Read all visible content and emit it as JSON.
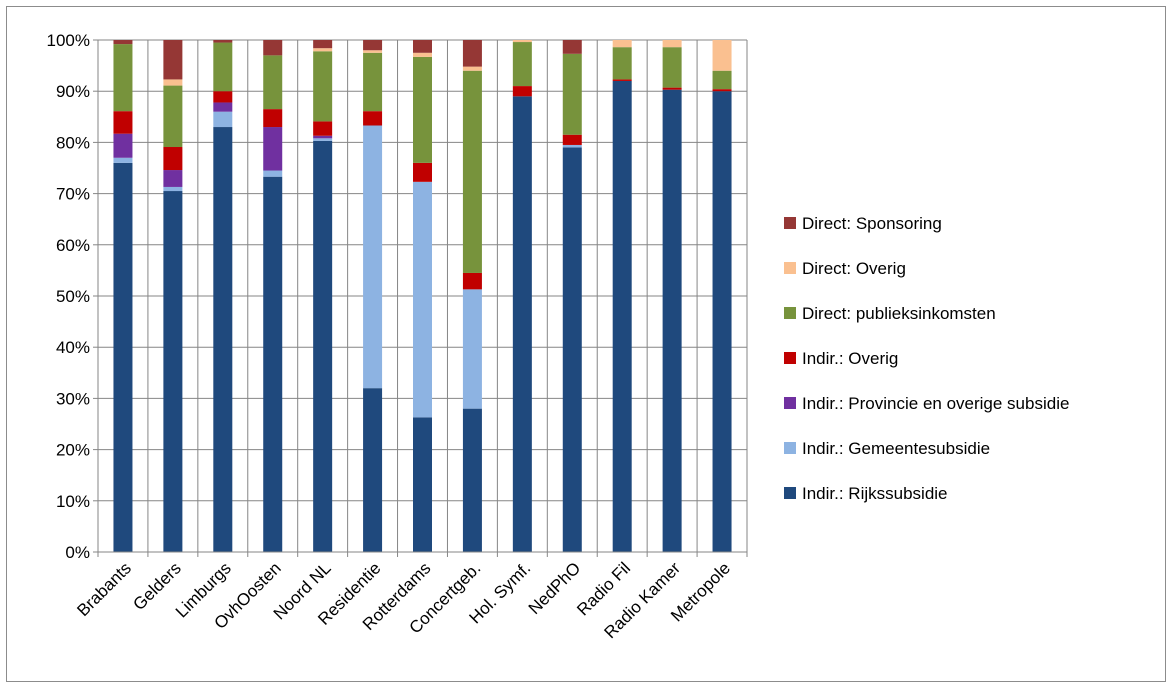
{
  "chart_data": {
    "type": "bar",
    "stacked": true,
    "normalized": true,
    "title": "",
    "xlabel": "",
    "ylabel": "",
    "ylim": [
      0,
      100
    ],
    "ytick_step": 10,
    "yticks": [
      "0%",
      "10%",
      "20%",
      "30%",
      "40%",
      "50%",
      "60%",
      "70%",
      "80%",
      "90%",
      "100%"
    ],
    "grid": true,
    "legend_position": "right",
    "categories": [
      "Brabants",
      "Gelders",
      "Limburgs",
      "OvhOosten",
      "Noord NL",
      "Residentie",
      "Rotterdams",
      "Concertgeb.",
      "Hol. Symf.",
      "NedPhO",
      "Radio Fil",
      "Radio Kamer",
      "Metropole"
    ],
    "series": [
      {
        "name": "Indir.: Rijkssubsidie",
        "color": "#1f497d",
        "values": [
          76,
          70.5,
          83,
          73.3,
          80.3,
          32,
          26.3,
          28,
          89,
          79,
          92,
          90.3,
          90
        ]
      },
      {
        "name": "Indir.: Gemeentesubsidie",
        "color": "#8db3e2",
        "values": [
          1,
          0.8,
          3,
          1.2,
          0.5,
          51.3,
          46,
          23.3,
          0,
          0.5,
          0,
          0,
          0
        ]
      },
      {
        "name": "Indir.: Provincie en overige subsidie",
        "color": "#7030a0",
        "values": [
          4.7,
          3.3,
          1.8,
          8.5,
          0.5,
          0,
          0,
          0,
          0,
          0,
          0,
          0,
          0
        ]
      },
      {
        "name": "Indir.: Overig",
        "color": "#c00000",
        "values": [
          4.4,
          4.5,
          2.2,
          3.5,
          2.8,
          2.8,
          3.7,
          3.2,
          2,
          2,
          0.3,
          0.4,
          0.4
        ]
      },
      {
        "name": "Direct: publieksinkomsten",
        "color": "#77933c",
        "values": [
          13.1,
          12,
          9.5,
          10.5,
          13.7,
          11.4,
          20.7,
          39.5,
          8.6,
          15.8,
          6.3,
          7.9,
          3.6
        ]
      },
      {
        "name": "Direct: Overig",
        "color": "#fac090",
        "values": [
          0,
          1.2,
          0,
          0,
          0.6,
          0.5,
          0.8,
          0.8,
          0.4,
          0,
          1.4,
          1.4,
          6
        ]
      },
      {
        "name": "Direct: Sponsoring",
        "color": "#953735",
        "values": [
          0.8,
          7.7,
          0.5,
          3,
          1.6,
          2,
          2.5,
          5.2,
          0,
          2.7,
          0,
          0,
          0
        ]
      }
    ],
    "legend_order": [
      "Direct: Sponsoring",
      "Direct: Overig",
      "Direct: publieksinkomsten",
      "Indir.: Overig",
      "Indir.: Provincie en overige subsidie",
      "Indir.: Gemeentesubsidie",
      "Indir.: Rijkssubsidie"
    ]
  }
}
